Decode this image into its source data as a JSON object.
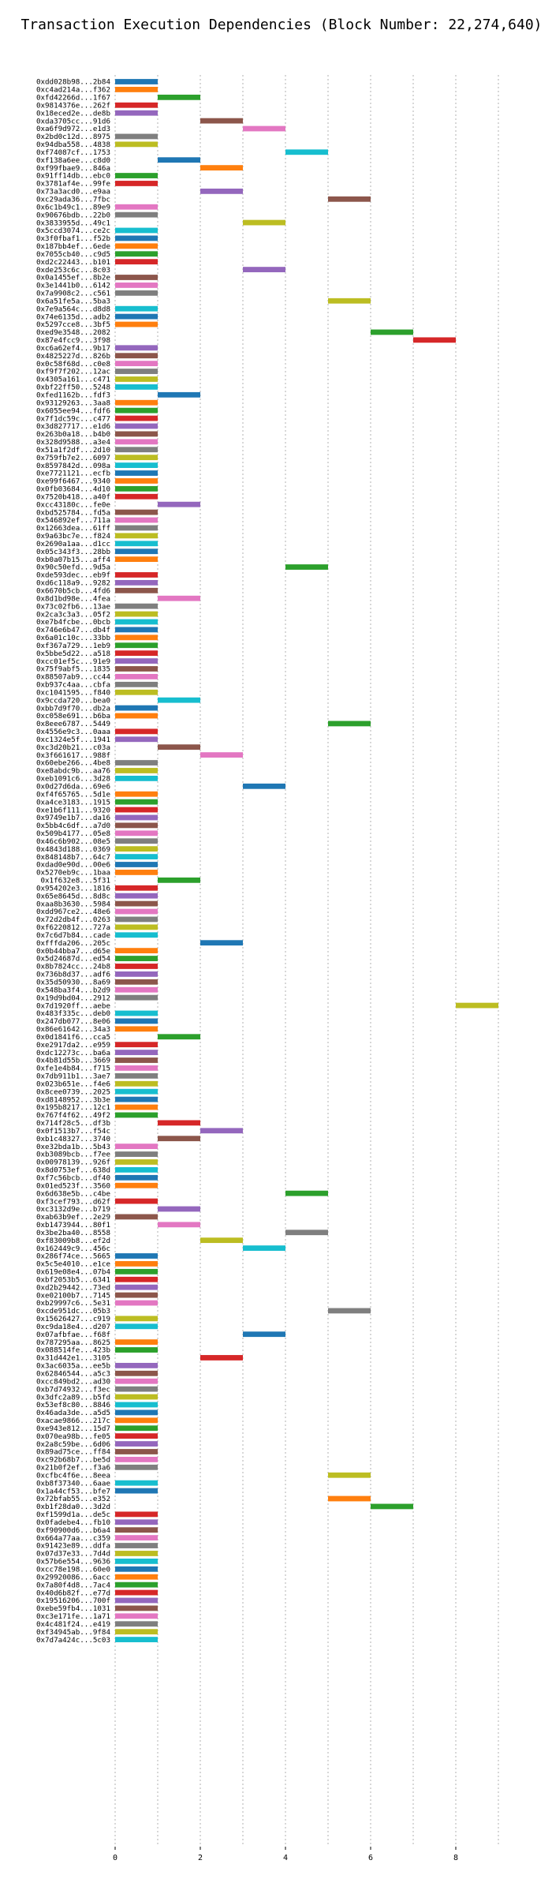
{
  "chart_data": {
    "type": "bar",
    "orientation": "horizontal",
    "title": "Transaction Execution Dependencies (Block Number: 22,274,640)",
    "xlabel": "",
    "ylabel": "",
    "xlim": [
      -0.3,
      9.6
    ],
    "xticks": [
      0,
      2,
      4,
      6,
      8
    ],
    "grid": true,
    "palette": [
      "#1f77b4",
      "#ff7f0e",
      "#2ca02c",
      "#d62728",
      "#9467bd",
      "#8c564b",
      "#e377c2",
      "#7f7f7f",
      "#bcbd22",
      "#17becf"
    ],
    "transactions": [
      {
        "hash": "0xdd028b98...2b84",
        "start": 0
      },
      {
        "hash": "0xc4ad214a...f362",
        "start": 0
      },
      {
        "hash": "0xfd42266d...1f67",
        "start": 1
      },
      {
        "hash": "0x9814376e...262f",
        "start": 0
      },
      {
        "hash": "0x18eced2e...de8b",
        "start": 0
      },
      {
        "hash": "0xda3705cc...91d6",
        "start": 2
      },
      {
        "hash": "0xa6f9d972...e1d3",
        "start": 3
      },
      {
        "hash": "0x2bd0c12d...8975",
        "start": 0
      },
      {
        "hash": "0x94dba558...4838",
        "start": 0
      },
      {
        "hash": "0xf74087cf...1753",
        "start": 4
      },
      {
        "hash": "0xf138a6ee...c8d0",
        "start": 1
      },
      {
        "hash": "0xf99fbae9...846a",
        "start": 2
      },
      {
        "hash": "0x91ff14db...ebc0",
        "start": 0
      },
      {
        "hash": "0x3781af4e...99fe",
        "start": 0
      },
      {
        "hash": "0x73a3acd0...e9aa",
        "start": 2
      },
      {
        "hash": "0xc29ada36...7fbc",
        "start": 5
      },
      {
        "hash": "0x6c1b49c1...89e9",
        "start": 0
      },
      {
        "hash": "0x90676bdb...22b0",
        "start": 0
      },
      {
        "hash": "0x3833955d...49c1",
        "start": 3
      },
      {
        "hash": "0x5ccd3074...ce2c",
        "start": 0
      },
      {
        "hash": "0x3f0fbaf1...f52b",
        "start": 0
      },
      {
        "hash": "0x187bb4ef...6ede",
        "start": 0
      },
      {
        "hash": "0x7055cb40...c9d5",
        "start": 0
      },
      {
        "hash": "0xd2c22443...b101",
        "start": 0
      },
      {
        "hash": "0xde253c6c...8c03",
        "start": 3
      },
      {
        "hash": "0x0a1455ef...8b2e",
        "start": 0
      },
      {
        "hash": "0x3e1441b0...6142",
        "start": 0
      },
      {
        "hash": "0x7a9908c2...c561",
        "start": 0
      },
      {
        "hash": "0x6a51fe5a...5ba3",
        "start": 5
      },
      {
        "hash": "0x7e9a564c...d8d8",
        "start": 0
      },
      {
        "hash": "0x74e6135d...adb2",
        "start": 0
      },
      {
        "hash": "0x5297cce8...3bf5",
        "start": 0
      },
      {
        "hash": "0xed9e3548...2082",
        "start": 6
      },
      {
        "hash": "0x87e4fcc9...3f98",
        "start": 7
      },
      {
        "hash": "0xc6a62ef4...9b17",
        "start": 0
      },
      {
        "hash": "0x4825227d...826b",
        "start": 0
      },
      {
        "hash": "0x0c58f68d...c0e8",
        "start": 0
      },
      {
        "hash": "0xf9f7f202...12ac",
        "start": 0
      },
      {
        "hash": "0x4305a161...c471",
        "start": 0
      },
      {
        "hash": "0xbf22ff50...5248",
        "start": 0
      },
      {
        "hash": "0xfed1162b...fdf3",
        "start": 1
      },
      {
        "hash": "0x93129263...3aa8",
        "start": 0
      },
      {
        "hash": "0x6055ee94...fdf6",
        "start": 0
      },
      {
        "hash": "0x7f1dc59c...c477",
        "start": 0
      },
      {
        "hash": "0x3d827717...e1d6",
        "start": 0
      },
      {
        "hash": "0x263b0a18...b4b0",
        "start": 0
      },
      {
        "hash": "0x328d9588...a3e4",
        "start": 0
      },
      {
        "hash": "0x51a1f2df...2d10",
        "start": 0
      },
      {
        "hash": "0x759fb7e2...6097",
        "start": 0
      },
      {
        "hash": "0x8597842d...098a",
        "start": 0
      },
      {
        "hash": "0xe7721121...ecfb",
        "start": 0
      },
      {
        "hash": "0xe99f6467...9340",
        "start": 0
      },
      {
        "hash": "0x0fb03684...4d10",
        "start": 0
      },
      {
        "hash": "0x7520b418...a40f",
        "start": 0
      },
      {
        "hash": "0xcc43180c...fe0e",
        "start": 1
      },
      {
        "hash": "0xbd525784...fd5a",
        "start": 0
      },
      {
        "hash": "0x546892ef...711a",
        "start": 0
      },
      {
        "hash": "0x12663dea...61ff",
        "start": 0
      },
      {
        "hash": "0x9a63bc7e...f824",
        "start": 0
      },
      {
        "hash": "0x2690a1aa...d1cc",
        "start": 0
      },
      {
        "hash": "0x05c343f3...28bb",
        "start": 0
      },
      {
        "hash": "0xb0a07b15...aff4",
        "start": 0
      },
      {
        "hash": "0x90c50efd...9d5a",
        "start": 4
      },
      {
        "hash": "0xde593dec...eb9f",
        "start": 0
      },
      {
        "hash": "0xd6c118a9...9282",
        "start": 0
      },
      {
        "hash": "0x6670b5cb...4fd6",
        "start": 0
      },
      {
        "hash": "0x8d1bd98e...4fea",
        "start": 1
      },
      {
        "hash": "0x73c02fb6...13ae",
        "start": 0
      },
      {
        "hash": "0x2ca3c3a3...05f2",
        "start": 0
      },
      {
        "hash": "0xe7b4fcbe...0bcb",
        "start": 0
      },
      {
        "hash": "0x746e6b47...db4f",
        "start": 0
      },
      {
        "hash": "0x6a01c10c...33bb",
        "start": 0
      },
      {
        "hash": "0xf367a729...1eb9",
        "start": 0
      },
      {
        "hash": "0x5bbe5d22...a518",
        "start": 0
      },
      {
        "hash": "0xcc01ef5c...91e9",
        "start": 0
      },
      {
        "hash": "0x75f9abf5...1835",
        "start": 0
      },
      {
        "hash": "0x88507ab9...cc44",
        "start": 0
      },
      {
        "hash": "0xb937c4aa...cbfa",
        "start": 0
      },
      {
        "hash": "0xc1041595...f840",
        "start": 0
      },
      {
        "hash": "0x9ccda720...bea0",
        "start": 1
      },
      {
        "hash": "0xbb7d9f70...db2a",
        "start": 0
      },
      {
        "hash": "0xc058e691...b6ba",
        "start": 0
      },
      {
        "hash": "0x8eee6787...5449",
        "start": 5
      },
      {
        "hash": "0x4556e9c3...0aaa",
        "start": 0
      },
      {
        "hash": "0xc1324e5f...1941",
        "start": 0
      },
      {
        "hash": "0xc3d20b21...c03a",
        "start": 1
      },
      {
        "hash": "0x3f661617...988f",
        "start": 2
      },
      {
        "hash": "0x60ebe266...4be8",
        "start": 0
      },
      {
        "hash": "0xe8abdc9b...aa76",
        "start": 0
      },
      {
        "hash": "0xeb1091c6...3d28",
        "start": 0
      },
      {
        "hash": "0x0d27d6da...69e6",
        "start": 3
      },
      {
        "hash": "0xf4f65765...5d1e",
        "start": 0
      },
      {
        "hash": "0xa4ce3183...1915",
        "start": 0
      },
      {
        "hash": "0xe1b6f111...9320",
        "start": 0
      },
      {
        "hash": "0x9749e1b7...da16",
        "start": 0
      },
      {
        "hash": "0x5bb4c6df...a7d0",
        "start": 0
      },
      {
        "hash": "0x509b4177...05e8",
        "start": 0
      },
      {
        "hash": "0x46c6b902...08e5",
        "start": 0
      },
      {
        "hash": "0x4843d188...0369",
        "start": 0
      },
      {
        "hash": "0x848148b7...64c7",
        "start": 0
      },
      {
        "hash": "0xdad0e90d...00e6",
        "start": 0
      },
      {
        "hash": "0x5270eb9c...1baa",
        "start": 0
      },
      {
        "hash": "0x1f632e8...5f31",
        "start": 1
      },
      {
        "hash": "0x954202e3...1816",
        "start": 0
      },
      {
        "hash": "0x65e8645d...8d8c",
        "start": 0
      },
      {
        "hash": "0xaa8b3630...5984",
        "start": 0
      },
      {
        "hash": "0xdd967ce2...48e6",
        "start": 0
      },
      {
        "hash": "0x72d2db4f...0263",
        "start": 0
      },
      {
        "hash": "0xf6220812...727a",
        "start": 0
      },
      {
        "hash": "0x7c6d7b84...cade",
        "start": 0
      },
      {
        "hash": "0xfffda206...205c",
        "start": 2
      },
      {
        "hash": "0x0b44bba7...d65e",
        "start": 0
      },
      {
        "hash": "0x5d24687d...ed54",
        "start": 0
      },
      {
        "hash": "0x8b7824cc...24b8",
        "start": 0
      },
      {
        "hash": "0x736b8d37...adf6",
        "start": 0
      },
      {
        "hash": "0x35d50930...8a69",
        "start": 0
      },
      {
        "hash": "0x548ba3f4...b2d9",
        "start": 0
      },
      {
        "hash": "0x19d9bd04...2912",
        "start": 0
      },
      {
        "hash": "0x7d1920ff...aebe",
        "start": 8
      },
      {
        "hash": "0x483f335c...deb0",
        "start": 0
      },
      {
        "hash": "0x247db077...8e06",
        "start": 0
      },
      {
        "hash": "0x86e61642...34a3",
        "start": 0
      },
      {
        "hash": "0x0d1841f6...cca5",
        "start": 1
      },
      {
        "hash": "0xe2917da2...e959",
        "start": 0
      },
      {
        "hash": "0xdc12273c...ba6a",
        "start": 0
      },
      {
        "hash": "0x4b81d55b...3669",
        "start": 0
      },
      {
        "hash": "0xfe1e4b84...f715",
        "start": 0
      },
      {
        "hash": "0x7db911b1...3ae7",
        "start": 0
      },
      {
        "hash": "0x023b651e...f4e6",
        "start": 0
      },
      {
        "hash": "0x8cee0739...2025",
        "start": 0
      },
      {
        "hash": "0xd8148952...3b3e",
        "start": 0
      },
      {
        "hash": "0x195b8217...12c1",
        "start": 0
      },
      {
        "hash": "0x767f4f62...49f2",
        "start": 0
      },
      {
        "hash": "0x714f28c5...df3b",
        "start": 1
      },
      {
        "hash": "0x0f1513b7...f54c",
        "start": 2
      },
      {
        "hash": "0xb1c48327...3740",
        "start": 1
      },
      {
        "hash": "0xe32bda1b...5b43",
        "start": 0
      },
      {
        "hash": "0xb3089bcb...f7ee",
        "start": 0
      },
      {
        "hash": "0x00978139...926f",
        "start": 0
      },
      {
        "hash": "0x8d0753ef...638d",
        "start": 0
      },
      {
        "hash": "0xf7c56bcb...df40",
        "start": 0
      },
      {
        "hash": "0x01ed523f...3560",
        "start": 0
      },
      {
        "hash": "0x6d638e5b...c4be",
        "start": 4
      },
      {
        "hash": "0xf3cef793...d62f",
        "start": 0
      },
      {
        "hash": "0xc3132d9e...b719",
        "start": 1
      },
      {
        "hash": "0xab63b9ef...2e29",
        "start": 0
      },
      {
        "hash": "0xb1473944...80f1",
        "start": 1
      },
      {
        "hash": "0x3be2ba40...8558",
        "start": 4
      },
      {
        "hash": "0xf83009b8...ef2d",
        "start": 2
      },
      {
        "hash": "0x162449c9...456c",
        "start": 3
      },
      {
        "hash": "0x286f74ce...5665",
        "start": 0
      },
      {
        "hash": "0x5c5e4010...e1ce",
        "start": 0
      },
      {
        "hash": "0x619e08e4...07b4",
        "start": 0
      },
      {
        "hash": "0xbf2053b5...6341",
        "start": 0
      },
      {
        "hash": "0xd2b29442...73ed",
        "start": 0
      },
      {
        "hash": "0xe02100b7...7145",
        "start": 0
      },
      {
        "hash": "0xb29997c6...5e31",
        "start": 0
      },
      {
        "hash": "0xcde951dc...05b3",
        "start": 5
      },
      {
        "hash": "0x15626427...c919",
        "start": 0
      },
      {
        "hash": "0xc9da18e4...d207",
        "start": 0
      },
      {
        "hash": "0x07afbfae...f68f",
        "start": 3
      },
      {
        "hash": "0x787295aa...8625",
        "start": 0
      },
      {
        "hash": "0x088514fe...423b",
        "start": 0
      },
      {
        "hash": "0x31d442e1...3105",
        "start": 2
      },
      {
        "hash": "0x3ac6035a...ee5b",
        "start": 0
      },
      {
        "hash": "0x62846544...a5c3",
        "start": 0
      },
      {
        "hash": "0xcc849bd2...ad30",
        "start": 0
      },
      {
        "hash": "0xb7d74932...f3ec",
        "start": 0
      },
      {
        "hash": "0x3dfc2a89...b5fd",
        "start": 0
      },
      {
        "hash": "0x53ef8c80...8846",
        "start": 0
      },
      {
        "hash": "0x46ada3de...a5d5",
        "start": 0
      },
      {
        "hash": "0xacae9866...217c",
        "start": 0
      },
      {
        "hash": "0xe943e812...15d7",
        "start": 0
      },
      {
        "hash": "0x070ea98b...fe05",
        "start": 0
      },
      {
        "hash": "0x2a8c59be...6d06",
        "start": 0
      },
      {
        "hash": "0x89ad75ce...ff84",
        "start": 0
      },
      {
        "hash": "0xc92b68b7...be5d",
        "start": 0
      },
      {
        "hash": "0x21b0f2ef...f3a6",
        "start": 0
      },
      {
        "hash": "0xcfbc4f6e...8eea",
        "start": 5
      },
      {
        "hash": "0xb8f37340...6aae",
        "start": 0
      },
      {
        "hash": "0x1a44cf53...bfe7",
        "start": 0
      },
      {
        "hash": "0x72bfab55...e352",
        "start": 5
      },
      {
        "hash": "0xb1f28da0...3d2d",
        "start": 6
      },
      {
        "hash": "0xf1599d1a...de5c",
        "start": 0
      },
      {
        "hash": "0x0fadebe4...fb10",
        "start": 0
      },
      {
        "hash": "0xf90900d6...b6a4",
        "start": 0
      },
      {
        "hash": "0x664a77aa...c359",
        "start": 0
      },
      {
        "hash": "0x91423e89...ddfa",
        "start": 0
      },
      {
        "hash": "0x07d37e33...7d4d",
        "start": 0
      },
      {
        "hash": "0x57b6e554...9636",
        "start": 0
      },
      {
        "hash": "0xcc78e198...60e0",
        "start": 0
      },
      {
        "hash": "0x29920086...6acc",
        "start": 0
      },
      {
        "hash": "0x7a80f4d8...7ac4",
        "start": 0
      },
      {
        "hash": "0x40d6b82f...e77d",
        "start": 0
      },
      {
        "hash": "0x19516206...700f",
        "start": 0
      },
      {
        "hash": "0xebe59fb4...1031",
        "start": 0
      },
      {
        "hash": "0xc3e171fe...1a71",
        "start": 0
      },
      {
        "hash": "0x4c481f24...e419",
        "start": 0
      },
      {
        "hash": "0xf34945ab...9f84",
        "start": 0
      },
      {
        "hash": "0x7d7a424c...5c03",
        "start": 0
      }
    ]
  }
}
